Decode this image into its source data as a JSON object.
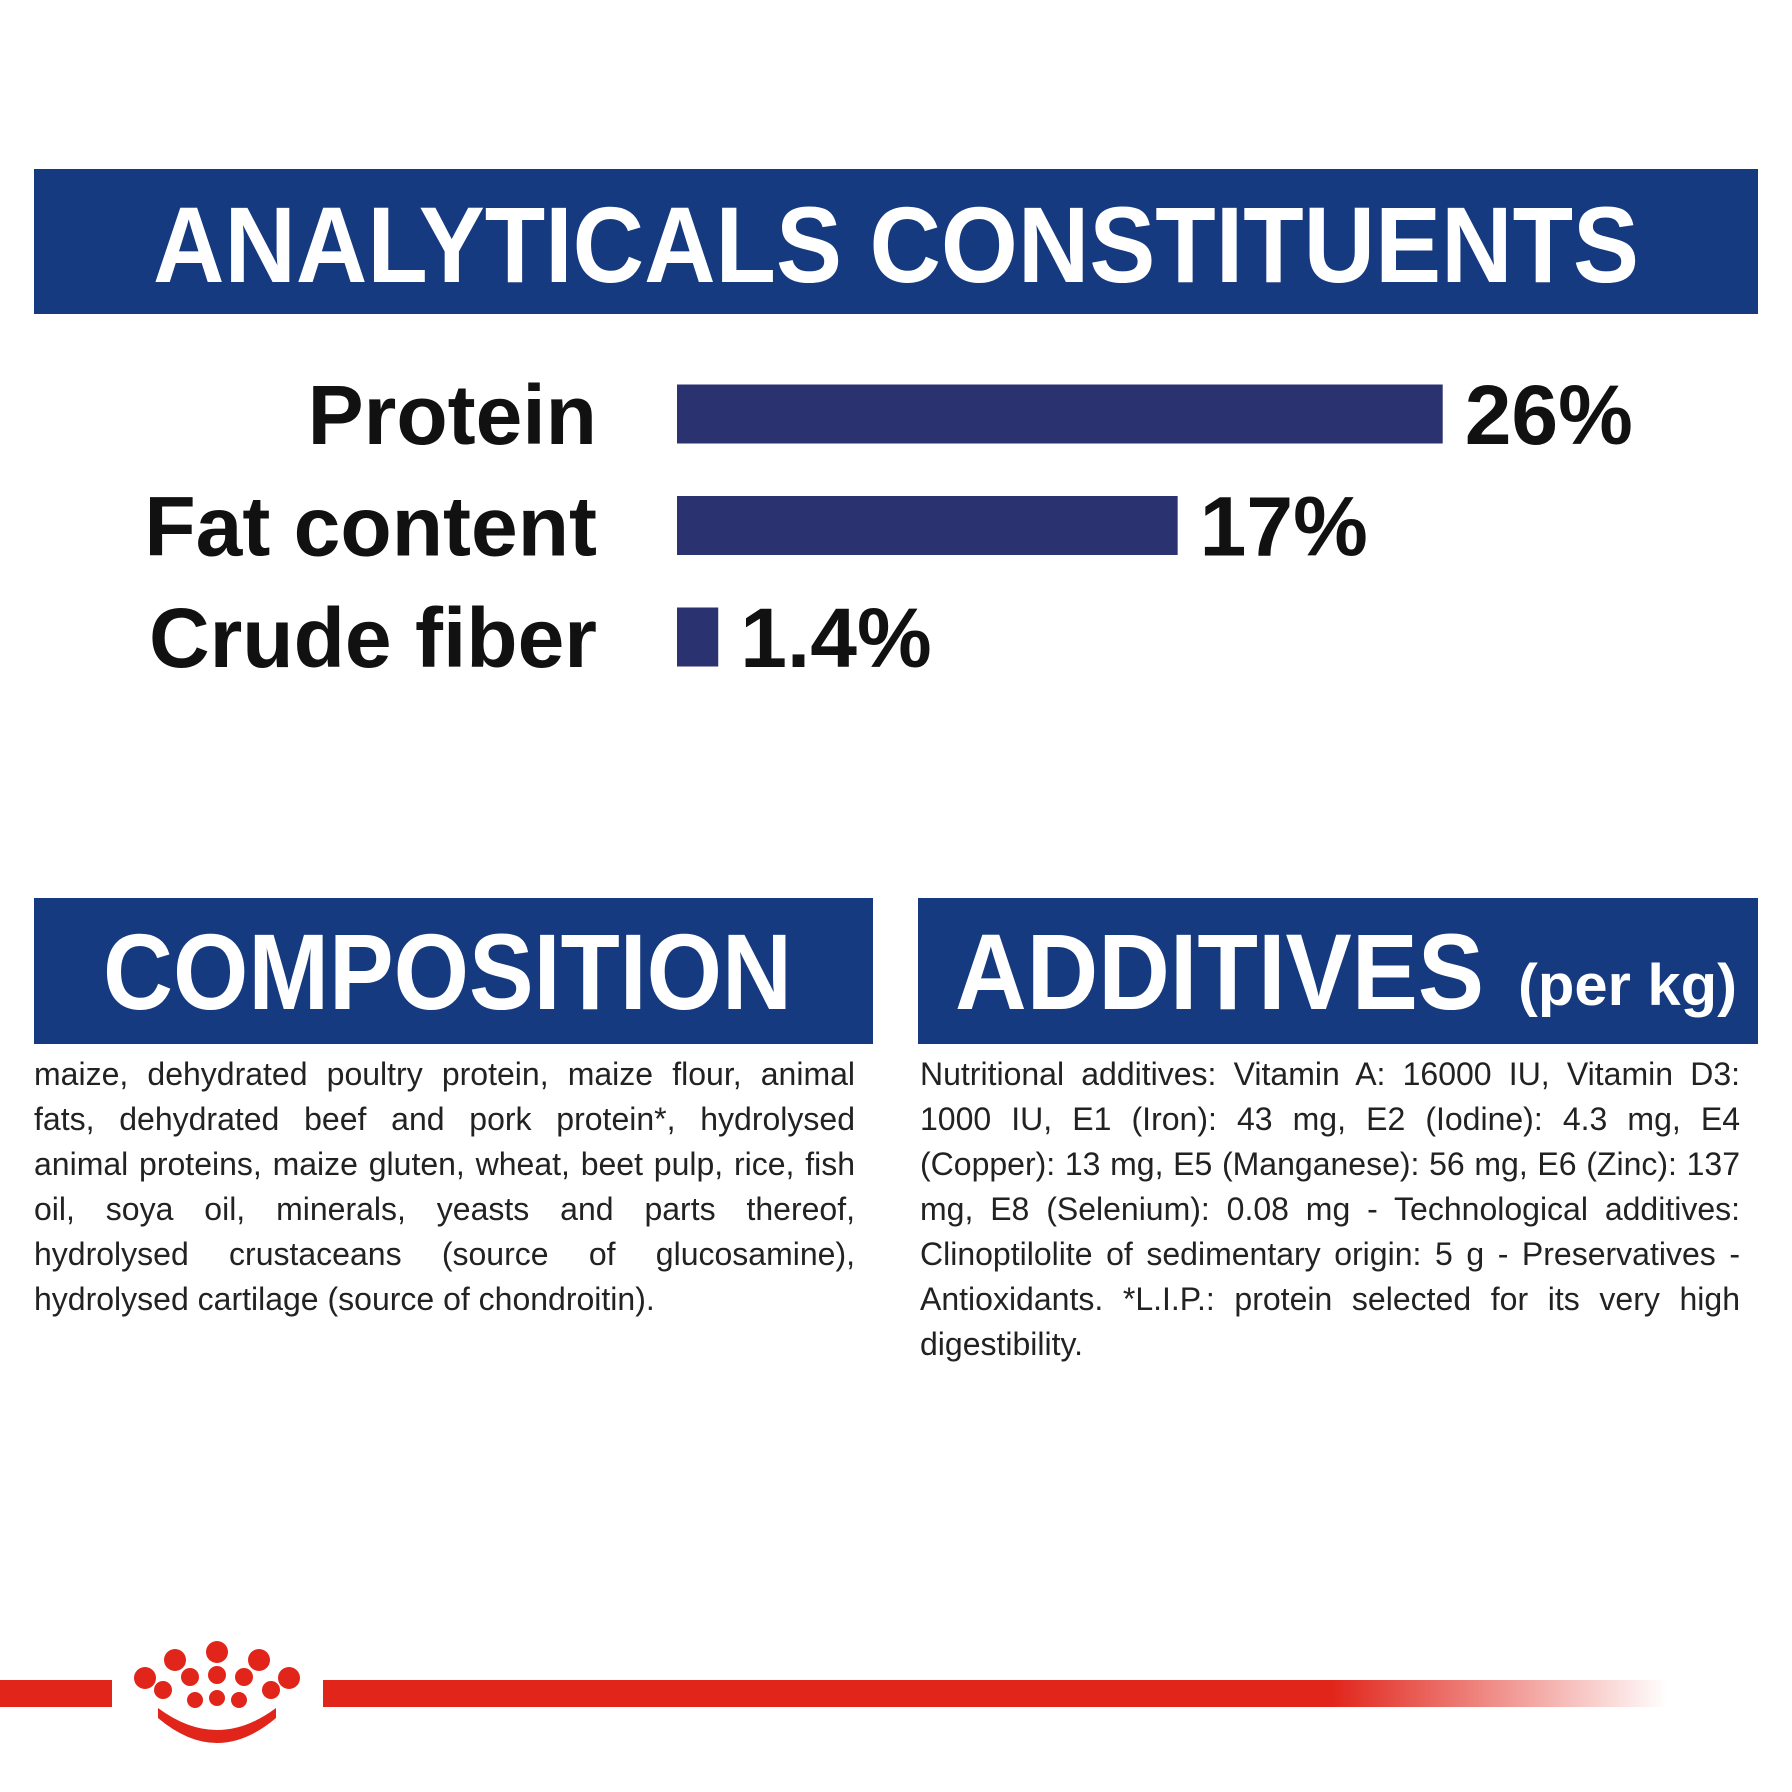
{
  "chart_data": {
    "type": "bar",
    "orientation": "horizontal",
    "title": "ANALYTICALS CONSTITUENTS",
    "categories": [
      "Protein",
      "Fat content",
      "Crude fiber"
    ],
    "values": [
      26,
      17,
      1.4
    ],
    "value_labels": [
      "26%",
      "17%",
      "1.4%"
    ],
    "color": "#2b3270"
  },
  "composition": {
    "title": "COMPOSITION",
    "text": "maize, dehydrated poultry protein, maize flour, animal fats, dehydrated beef and pork protein*, hydrolysed animal proteins, maize gluten, wheat, beet pulp, rice, fish oil, soya oil, minerals, yeasts and parts thereof, hydrolysed crustaceans (source of glucosamine), hydrolysed cartilage (source of chondroitin)."
  },
  "additives": {
    "title": "ADDITIVES",
    "unit": "(per kg)",
    "text": "Nutritional additives: Vitamin A: 16000 IU, Vitamin D3: 1000 IU, E1 (Iron): 43 mg, E2 (Iodine): 4.3 mg, E4 (Copper): 13 mg, E5 (Manganese): 56 mg, E6 (Zinc): 137 mg, E8 (Selenium): 0.08 mg - Technological additives: Clinoptilolite of sedimentary origin: 5 g - Preservatives - Antioxidants. *L.I.P.: protein selected for its very high digestibility."
  }
}
